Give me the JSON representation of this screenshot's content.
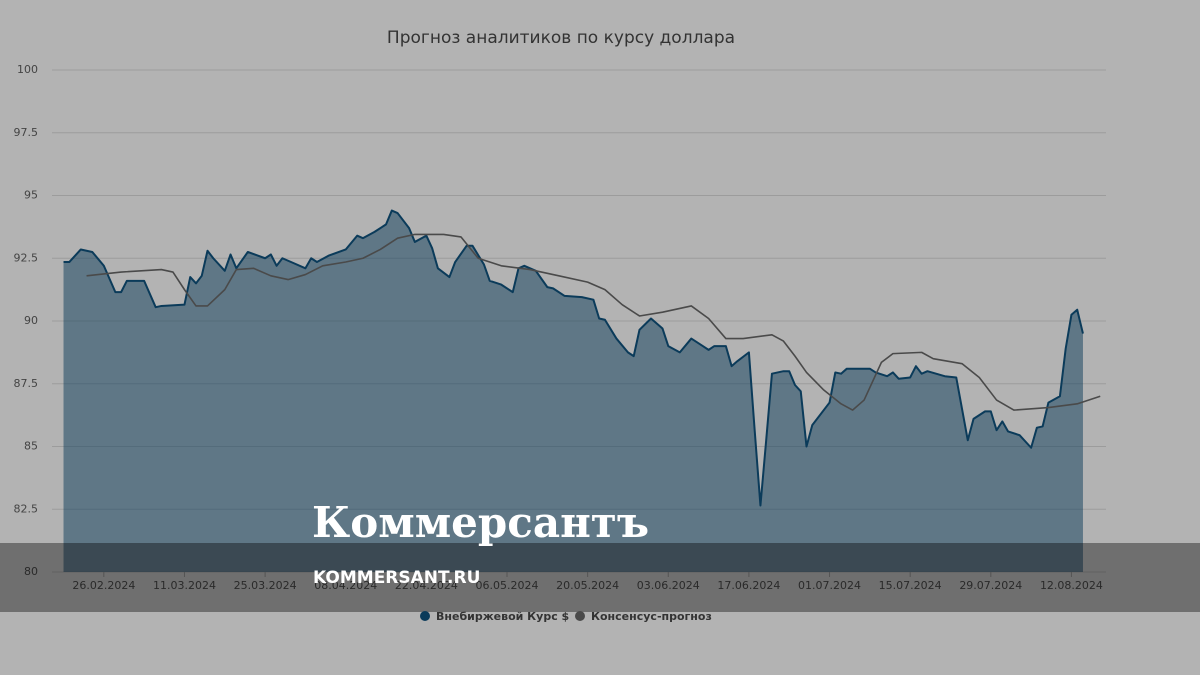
{
  "chart_data": {
    "type": "area-line",
    "title": "Прогноз аналитиков по курсу доллара",
    "ylim": [
      80,
      100
    ],
    "yticks": [
      80,
      82.5,
      85,
      87.5,
      90,
      92.5,
      95,
      97.5,
      100
    ],
    "grid": true,
    "xlim": [
      "17.02.2024",
      "18.08.2024"
    ],
    "xticks": [
      "26.02.2024",
      "11.03.2024",
      "25.03.2024",
      "08.04.2024",
      "22.04.2024",
      "06.05.2024",
      "20.05.2024",
      "03.06.2024",
      "17.06.2024",
      "01.07.2024",
      "15.07.2024",
      "29.07.2024",
      "12.08.2024"
    ],
    "legend": "bottom",
    "series": [
      {
        "name": "Внебиржевой Курс $",
        "color": "#0b3b5a",
        "style": "area",
        "x": [
          "19.02.2024",
          "20.02.2024",
          "22.02.2024",
          "24.02.2024",
          "26.02.2024",
          "28.02.2024",
          "29.02.2024",
          "01.03.2024",
          "04.03.2024",
          "06.03.2024",
          "07.03.2024",
          "11.03.2024",
          "12.03.2024",
          "13.03.2024",
          "14.03.2024",
          "15.03.2024",
          "16.03.2024",
          "18.03.2024",
          "19.03.2024",
          "20.03.2024",
          "22.03.2024",
          "25.03.2024",
          "26.03.2024",
          "27.03.2024",
          "28.03.2024",
          "30.03.2024",
          "01.04.2024",
          "02.04.2024",
          "03.04.2024",
          "05.04.2024",
          "08.04.2024",
          "10.04.2024",
          "11.04.2024",
          "13.04.2024",
          "15.04.2024",
          "16.04.2024",
          "17.04.2024",
          "19.04.2024",
          "20.04.2024",
          "22.04.2024",
          "23.04.2024",
          "24.04.2024",
          "26.04.2024",
          "27.04.2024",
          "29.04.2024",
          "30.04.2024",
          "02.05.2024",
          "03.05.2024",
          "05.05.2024",
          "07.05.2024",
          "08.05.2024",
          "09.05.2024",
          "11.05.2024",
          "13.05.2024",
          "14.05.2024",
          "16.05.2024",
          "19.05.2024",
          "21.05.2024",
          "22.05.2024",
          "23.05.2024",
          "25.05.2024",
          "27.05.2024",
          "28.05.2024",
          "29.05.2024",
          "31.05.2024",
          "02.06.2024",
          "03.06.2024",
          "05.06.2024",
          "07.06.2024",
          "09.06.2024",
          "10.06.2024",
          "11.06.2024",
          "13.06.2024",
          "14.06.2024",
          "15.06.2024",
          "17.06.2024",
          "18.06.2024",
          "19.06.2024",
          "20.06.2024",
          "21.06.2024",
          "23.06.2024",
          "24.06.2024",
          "25.06.2024",
          "26.06.2024",
          "27.06.2024",
          "28.06.2024",
          "01.07.2024",
          "02.07.2024",
          "03.07.2024",
          "04.07.2024",
          "08.07.2024",
          "09.07.2024",
          "11.07.2024",
          "12.07.2024",
          "13.07.2024",
          "15.07.2024",
          "16.07.2024",
          "17.07.2024",
          "18.07.2024",
          "21.07.2024",
          "23.07.2024",
          "25.07.2024",
          "26.07.2024",
          "28.07.2024",
          "29.07.2024",
          "30.07.2024",
          "31.07.2024",
          "01.08.2024",
          "03.08.2024",
          "05.08.2024",
          "06.08.2024",
          "07.08.2024",
          "08.08.2024",
          "10.08.2024",
          "11.08.2024",
          "12.08.2024",
          "13.08.2024",
          "14.08.2024"
        ],
        "values": [
          92.35,
          92.35,
          92.85,
          92.75,
          92.2,
          91.15,
          91.15,
          91.6,
          91.6,
          90.55,
          90.6,
          90.65,
          91.75,
          91.5,
          91.8,
          92.8,
          92.5,
          92.0,
          92.65,
          92.1,
          92.75,
          92.5,
          92.65,
          92.2,
          92.5,
          92.3,
          92.1,
          92.5,
          92.35,
          92.6,
          92.85,
          93.4,
          93.3,
          93.55,
          93.85,
          94.4,
          94.3,
          93.7,
          93.15,
          93.4,
          92.9,
          92.1,
          91.75,
          92.35,
          93.0,
          93.0,
          92.25,
          91.6,
          91.45,
          91.15,
          92.1,
          92.2,
          92.0,
          91.35,
          91.3,
          91.0,
          90.95,
          90.85,
          90.1,
          90.05,
          89.3,
          88.75,
          88.6,
          89.65,
          90.1,
          89.7,
          89.0,
          88.75,
          89.3,
          89.0,
          88.85,
          89.0,
          89.0,
          88.2,
          88.4,
          88.75,
          85.65,
          82.65,
          85.25,
          87.9,
          88.0,
          88.0,
          87.45,
          87.2,
          85.0,
          85.85,
          86.75,
          87.95,
          87.9,
          88.1,
          88.1,
          87.95,
          87.8,
          87.95,
          87.7,
          87.75,
          88.2,
          87.9,
          88.0,
          87.8,
          87.75,
          85.25,
          86.1,
          86.4,
          86.4,
          85.65,
          86.0,
          85.6,
          85.45,
          84.95,
          85.75,
          85.8,
          86.75,
          87.0,
          88.9,
          90.25,
          90.45,
          89.5
        ]
      },
      {
        "name": "Консенсус-прогноз",
        "color": "#4a4a4a",
        "style": "line",
        "x": [
          "23.02.2024",
          "29.02.2024",
          "07.03.2024",
          "09.03.2024",
          "11.03.2024",
          "13.03.2024",
          "15.03.2024",
          "18.03.2024",
          "20.03.2024",
          "23.03.2024",
          "26.03.2024",
          "29.03.2024",
          "01.04.2024",
          "04.04.2024",
          "08.04.2024",
          "11.04.2024",
          "14.04.2024",
          "17.04.2024",
          "20.04.2024",
          "25.04.2024",
          "28.04.2024",
          "01.05.2024",
          "05.05.2024",
          "10.05.2024",
          "15.05.2024",
          "20.05.2024",
          "23.05.2024",
          "26.05.2024",
          "29.05.2024",
          "02.06.2024",
          "07.06.2024",
          "10.06.2024",
          "13.06.2024",
          "16.06.2024",
          "21.06.2024",
          "23.06.2024",
          "25.06.2024",
          "27.06.2024",
          "30.06.2024",
          "03.07.2024",
          "05.07.2024",
          "07.07.2024",
          "10.07.2024",
          "12.07.2024",
          "17.07.2024",
          "19.07.2024",
          "24.07.2024",
          "27.07.2024",
          "30.07.2024",
          "02.08.2024",
          "08.08.2024",
          "13.08.2024",
          "17.08.2024"
        ],
        "values": [
          91.8,
          91.95,
          92.05,
          91.95,
          91.25,
          90.6,
          90.6,
          91.25,
          92.05,
          92.1,
          91.8,
          91.65,
          91.85,
          92.2,
          92.35,
          92.5,
          92.85,
          93.3,
          93.45,
          93.45,
          93.35,
          92.5,
          92.2,
          92.05,
          91.8,
          91.55,
          91.25,
          90.65,
          90.2,
          90.35,
          90.6,
          90.1,
          89.3,
          89.3,
          89.45,
          89.2,
          88.6,
          87.95,
          87.25,
          86.7,
          86.45,
          86.85,
          88.35,
          88.7,
          88.75,
          88.5,
          88.3,
          87.75,
          86.85,
          86.45,
          86.55,
          86.7,
          87.0
        ]
      }
    ]
  },
  "watermark": {
    "logo": "Коммерсантъ",
    "url": "KOMMERSANT.RU"
  }
}
